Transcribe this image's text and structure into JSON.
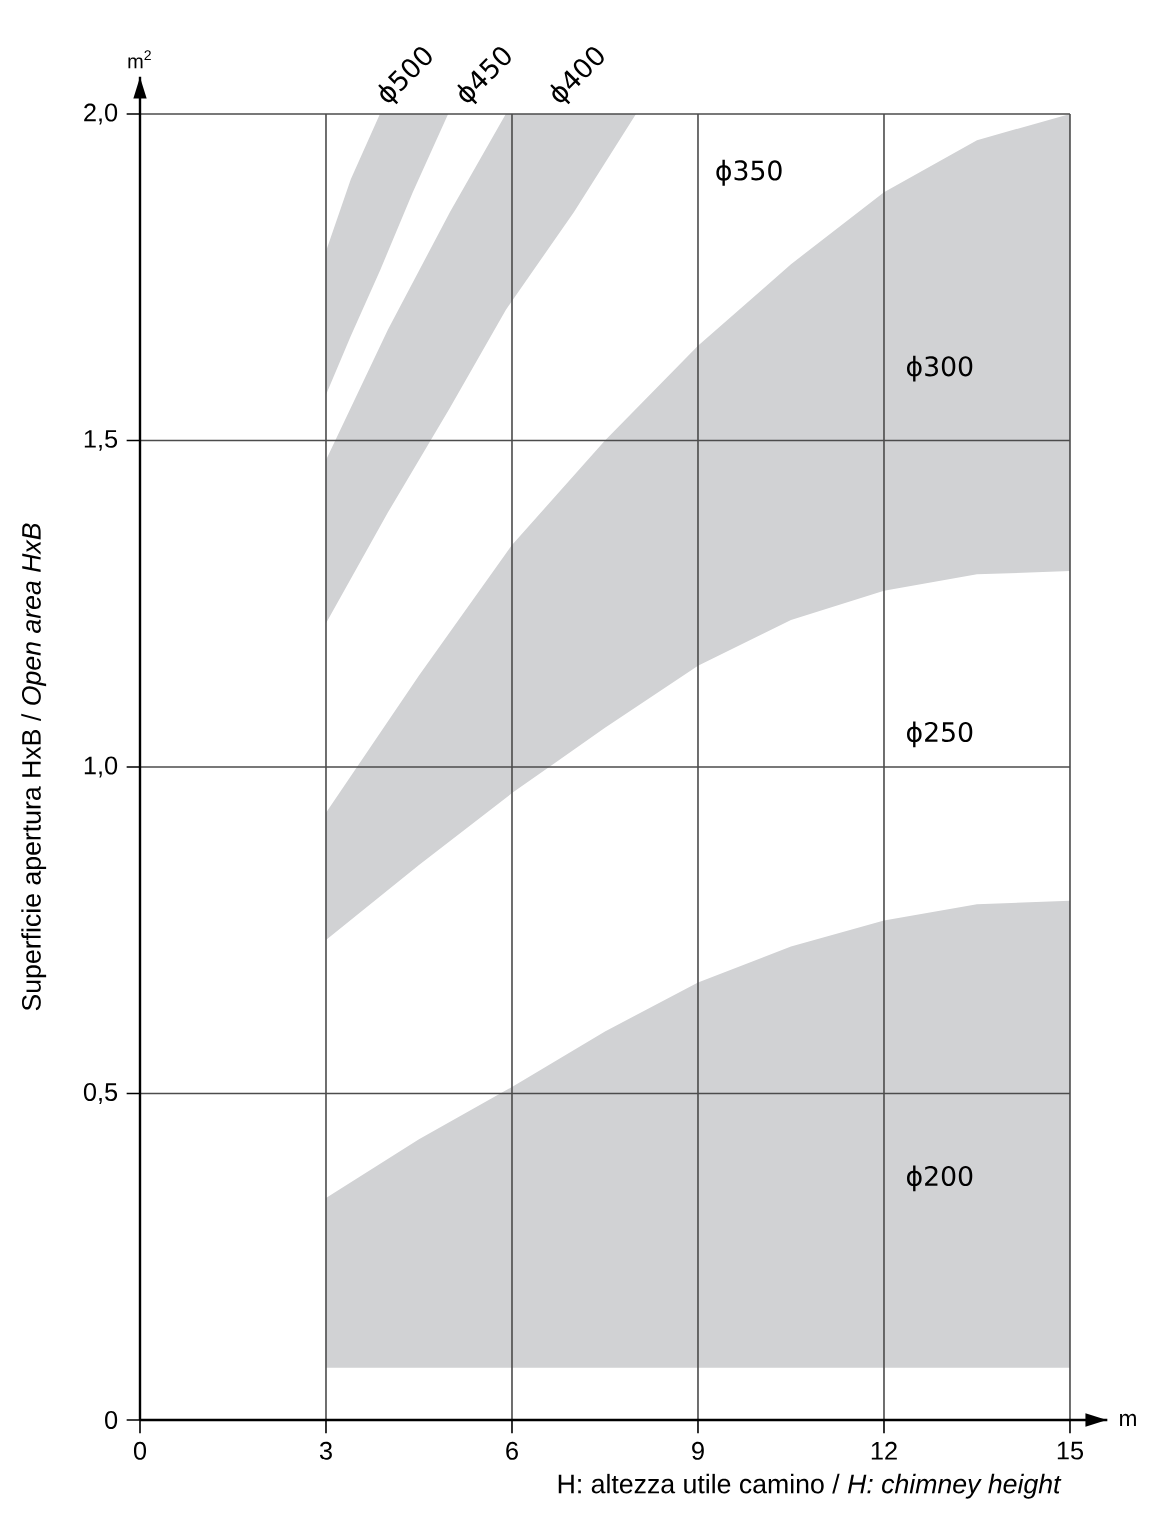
{
  "chart_data": {
    "type": "area",
    "xlabel": "H: altezza utile camino / *H: chimney height*",
    "ylabel": "Superficie apertura HxB / *Open area HxB*",
    "xlim": [
      0,
      15
    ],
    "ylim": [
      0,
      2.0
    ],
    "xticks": [
      0,
      3,
      6,
      9,
      12,
      15
    ],
    "yticks": [
      0,
      {
        "value": 0.5,
        "label": "0,5"
      },
      {
        "value": 1.0,
        "label": "1,0"
      },
      {
        "value": 1.5,
        "label": "1,5"
      },
      {
        "value": 2.0,
        "label": "2,0"
      }
    ],
    "grid": true,
    "series": [
      {
        "color": "#d1d2d4",
        "x": [
          3,
          4.5,
          6,
          7.5,
          9,
          10.5,
          12,
          13.5,
          15
        ],
        "values": [
          null,
          null,
          null,
          null,
          null,
          null,
          null,
          null,
          null
        ],
        "lower": [
          0.08,
          0.08,
          0.08,
          0.08,
          0.08,
          0.08,
          0.08,
          0.08,
          0.08
        ],
        "upper": [
          0.34,
          0.43,
          0.51,
          0.595,
          0.67,
          0.725,
          0.765,
          0.79,
          0.795
        ]
      },
      {
        "color": "#d1d2d4",
        "x": [
          3,
          4.5,
          6,
          7.5,
          9,
          10.5,
          12,
          13.5,
          15
        ],
        "values": [
          null,
          null,
          null,
          null,
          null,
          null,
          null,
          null,
          null
        ],
        "lower": [
          0.735,
          0.85,
          0.96,
          1.06,
          1.155,
          1.225,
          1.27,
          1.295,
          1.3
        ],
        "upper": [
          0.93,
          1.14,
          1.34,
          1.5,
          1.645,
          1.77,
          1.88,
          1.96,
          2.0
        ]
      },
      {
        "color": "#d1d2d4",
        "x": [
          3,
          4,
          5,
          5.9,
          7,
          8
        ],
        "values": [
          null,
          null,
          null,
          null,
          null,
          null
        ],
        "lower": [
          1.22,
          1.39,
          1.55,
          1.7,
          1.85,
          2.0
        ],
        "upper": [
          1.47,
          1.67,
          1.85,
          2.0,
          2.0,
          2.0
        ]
      },
      {
        "color": "#d1d2d4",
        "x": [
          3,
          3.4,
          3.87,
          4.4,
          4.97
        ],
        "values": [
          null,
          null,
          null,
          null,
          null
        ],
        "lower": [
          1.57,
          1.66,
          1.76,
          1.88,
          2.0
        ],
        "upper": [
          1.79,
          1.9,
          2.0,
          2.0,
          2.0
        ]
      }
    ],
    "annotations": [
      "m$^{2}$",
      "m",
      "ϕ500",
      "ϕ450",
      "ϕ400",
      "ϕ350",
      "ϕ300",
      "ϕ250",
      "ϕ200"
    ]
  }
}
